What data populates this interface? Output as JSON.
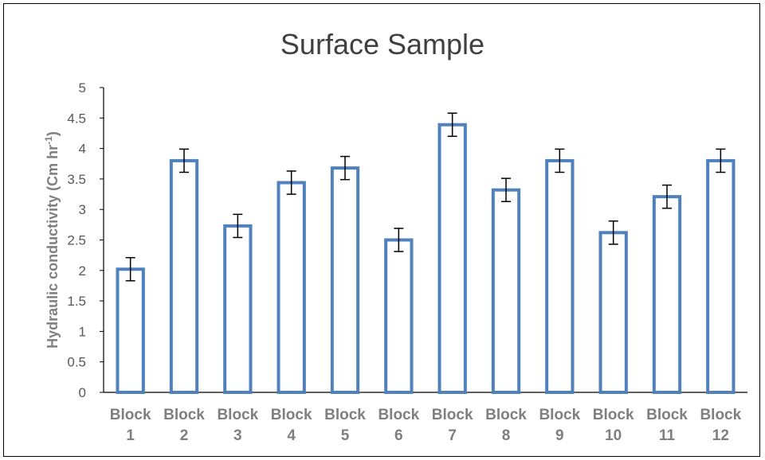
{
  "chart_data": {
    "type": "bar",
    "title": "Surface Sample",
    "xlabel": "",
    "ylabel": "Hydraulic conductivity (Cm hr",
    "ylabel_superscript": "-1",
    "ylabel_suffix": ")",
    "categories": [
      "Block 1",
      "Block 2",
      "Block 3",
      "Block 4",
      "Block 5",
      "Block 6",
      "Block 7",
      "Block 8",
      "Block 9",
      "Block 10",
      "Block 11",
      "Block 12"
    ],
    "category_lines": [
      [
        "Block",
        "1"
      ],
      [
        "Block",
        "2"
      ],
      [
        "Block",
        "3"
      ],
      [
        "Block",
        "4"
      ],
      [
        "Block",
        "5"
      ],
      [
        "Block",
        "6"
      ],
      [
        "Block",
        "7"
      ],
      [
        "Block",
        "8"
      ],
      [
        "Block",
        "9"
      ],
      [
        "Block",
        "10"
      ],
      [
        "Block",
        "11"
      ],
      [
        "Block",
        "12"
      ]
    ],
    "values": [
      2.02,
      3.8,
      2.73,
      3.44,
      3.68,
      2.5,
      4.39,
      3.32,
      3.8,
      2.62,
      3.21,
      3.8
    ],
    "error": [
      0.19,
      0.19,
      0.19,
      0.19,
      0.19,
      0.19,
      0.19,
      0.19,
      0.19,
      0.19,
      0.19,
      0.19
    ],
    "ylim": [
      0,
      5
    ],
    "yticks": [
      "0",
      "0.5",
      "1",
      "1.5",
      "2",
      "2.5",
      "3",
      "3.5",
      "4",
      "4.5",
      "5"
    ],
    "grid": false,
    "legend": "none",
    "bar_fill": "#ffffff",
    "bar_stroke": "#4f81bd"
  }
}
